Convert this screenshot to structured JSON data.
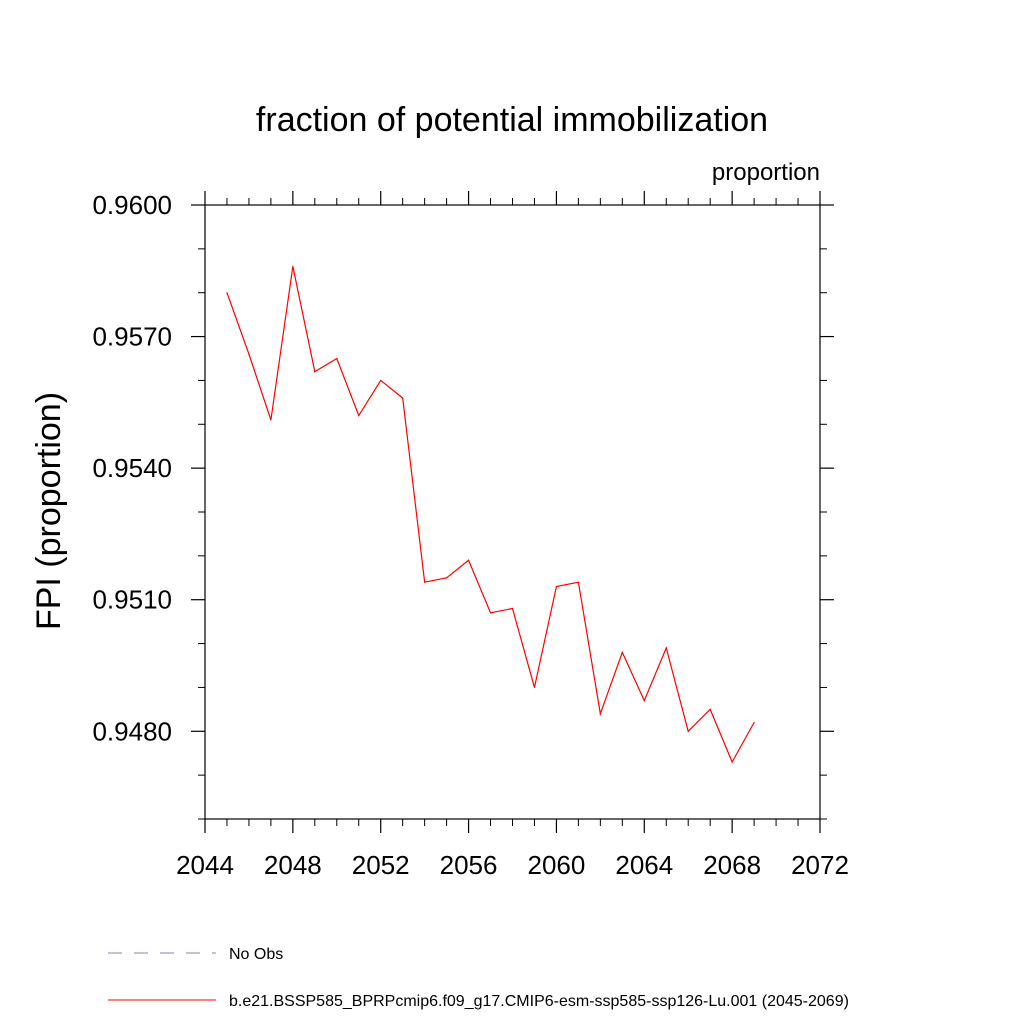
{
  "chart_data": {
    "type": "line",
    "title": "fraction of potential immobilization",
    "units_label": "proportion",
    "ylabel": "FPI  (proportion)",
    "xlabel": "",
    "xlim": [
      2044,
      2072
    ],
    "ylim": [
      0.946,
      0.96
    ],
    "x_ticks": [
      2044,
      2048,
      2052,
      2056,
      2060,
      2064,
      2068,
      2072
    ],
    "x_tick_labels": [
      "2044",
      "2048",
      "2052",
      "2056",
      "2060",
      "2064",
      "2068",
      "2072"
    ],
    "y_ticks": [
      0.948,
      0.951,
      0.954,
      0.957,
      0.96
    ],
    "y_tick_labels": [
      "0.9480",
      "0.9510",
      "0.9540",
      "0.9570",
      "0.9600"
    ],
    "grid": false,
    "series": [
      {
        "name": "b.e21.BSSP585_BPRPcmip6.f09_g17.CMIP6-esm-ssp585-ssp126-Lu.001 (2045-2069)",
        "color": "#ff0000",
        "style": "solid",
        "x": [
          2045,
          2046,
          2047,
          2048,
          2049,
          2050,
          2051,
          2052,
          2053,
          2054,
          2055,
          2056,
          2057,
          2058,
          2059,
          2060,
          2061,
          2062,
          2063,
          2064,
          2065,
          2066,
          2067,
          2068,
          2069
        ],
        "values": [
          0.958,
          0.9566,
          0.9551,
          0.9586,
          0.9562,
          0.9565,
          0.9552,
          0.956,
          0.9556,
          0.9514,
          0.9515,
          0.9519,
          0.9507,
          0.9508,
          0.949,
          0.9513,
          0.9514,
          0.9484,
          0.9498,
          0.9487,
          0.9499,
          0.948,
          0.9485,
          0.9473,
          0.9482
        ]
      }
    ],
    "legend": [
      {
        "label": "No Obs",
        "color": "#8a7fc0",
        "style": "dashed"
      },
      {
        "label": "b.e21.BSSP585_BPRPcmip6.f09_g17.CMIP6-esm-ssp585-ssp126-Lu.001 (2045-2069)",
        "color": "#ff0000",
        "style": "solid"
      }
    ],
    "legend_position": "bottom-left"
  }
}
